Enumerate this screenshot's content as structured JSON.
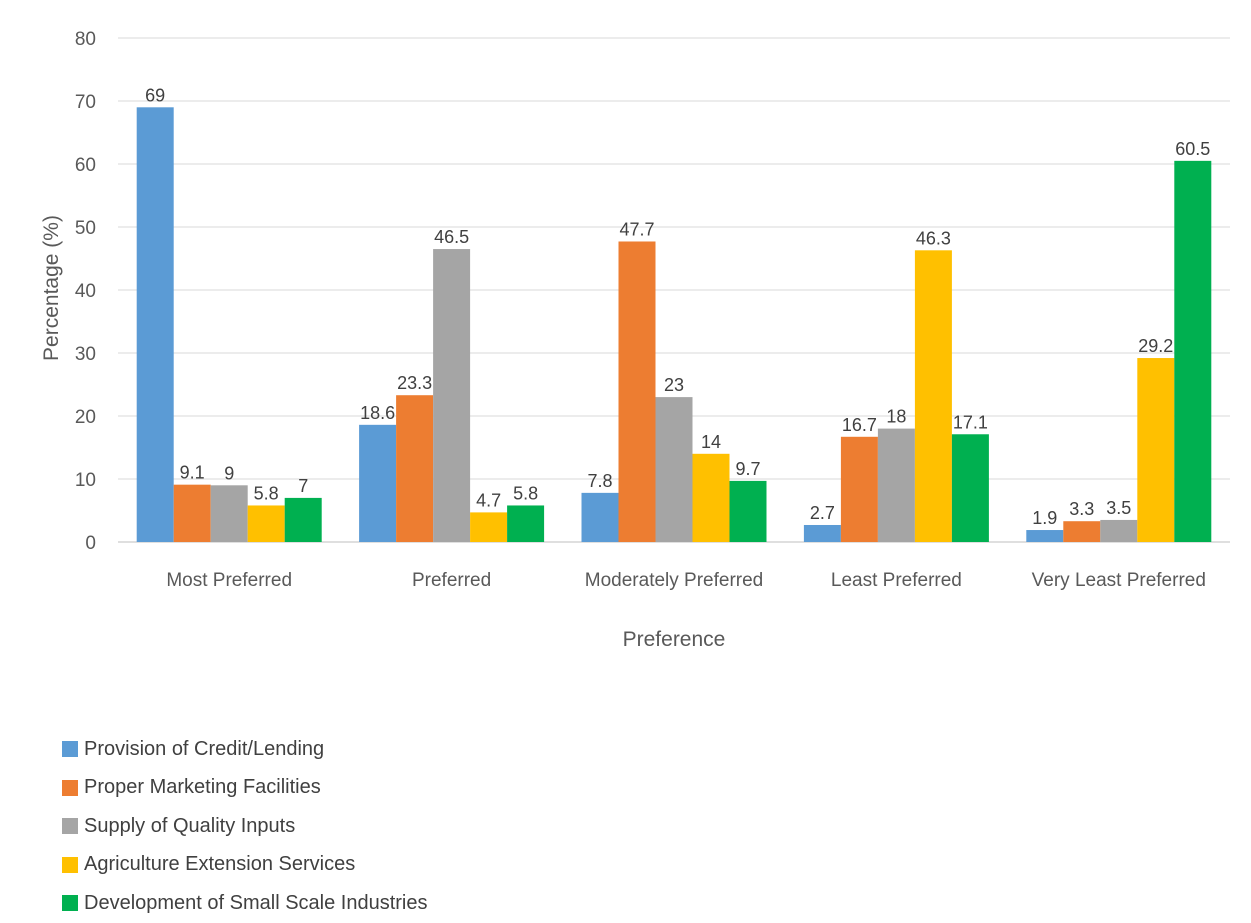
{
  "chart_data": {
    "type": "bar",
    "title": "",
    "xlabel": "Preference",
    "ylabel": "Percentage (%)",
    "ylim": [
      0,
      80
    ],
    "yticks": [
      0,
      10,
      20,
      30,
      40,
      50,
      60,
      70,
      80
    ],
    "grid": true,
    "legend_position": "bottom-left",
    "categories": [
      "Most Preferred",
      "Preferred",
      "Moderately Preferred",
      "Least Preferred",
      "Very Least Preferred"
    ],
    "series": [
      {
        "name": "Provision of Credit/Lending",
        "color": "#5B9BD5",
        "values": [
          69,
          18.6,
          7.8,
          2.7,
          1.9
        ]
      },
      {
        "name": "Proper Marketing Facilities",
        "color": "#ED7D31",
        "values": [
          9.1,
          23.3,
          47.7,
          16.7,
          3.3
        ]
      },
      {
        "name": "Supply of Quality Inputs",
        "color": "#A5A5A5",
        "values": [
          9,
          46.5,
          23,
          18,
          3.5
        ]
      },
      {
        "name": "Agriculture Extension Services",
        "color": "#FFC000",
        "values": [
          5.8,
          4.7,
          14,
          46.3,
          29.2
        ]
      },
      {
        "name": "Development of Small Scale Industries",
        "color": "#00B050",
        "values": [
          7,
          5.8,
          9.7,
          17.1,
          60.5
        ]
      }
    ]
  }
}
